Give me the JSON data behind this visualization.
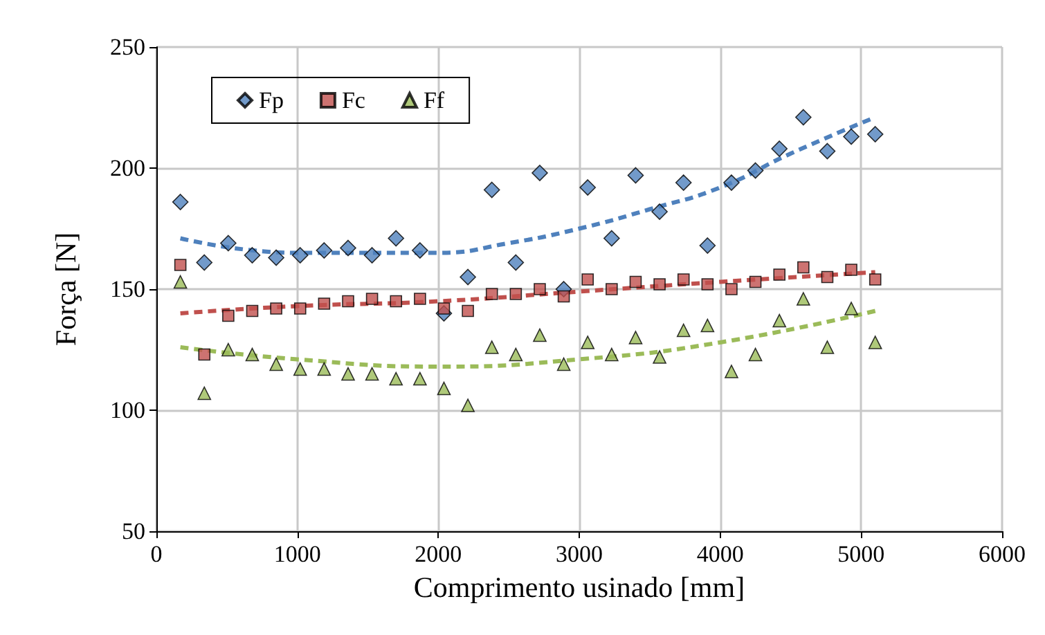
{
  "chart_data": {
    "type": "scatter",
    "xlabel": "Comprimento usinado [mm]",
    "ylabel": "Força [N]",
    "x": [
      170,
      340,
      510,
      680,
      850,
      1020,
      1190,
      1360,
      1530,
      1700,
      1870,
      2040,
      2210,
      2380,
      2550,
      2720,
      2890,
      3060,
      3230,
      3400,
      3570,
      3740,
      3910,
      4080,
      4250,
      4420,
      4590,
      4760,
      4930,
      5100
    ],
    "xlim": [
      0,
      6000
    ],
    "xticks": [
      0,
      1000,
      2000,
      3000,
      4000,
      5000,
      6000
    ],
    "ylim": [
      50,
      250
    ],
    "yticks": [
      50,
      100,
      150,
      200,
      250
    ],
    "grid": true,
    "legend": "top left",
    "series": [
      {
        "name": "Fp",
        "color": "#4f81bd",
        "marker": "diamond",
        "values": [
          186,
          161,
          169,
          164,
          163,
          164,
          166,
          167,
          164,
          171,
          166,
          140,
          155,
          191,
          161,
          198,
          150,
          192,
          171,
          197,
          182,
          194,
          168,
          194,
          199,
          208,
          221,
          207,
          213,
          214
        ]
      },
      {
        "name": "Fc",
        "color": "#c0504d",
        "marker": "square",
        "values": [
          160,
          123,
          139,
          141,
          142,
          142,
          144,
          145,
          146,
          145,
          146,
          142,
          141,
          148,
          148,
          150,
          147,
          154,
          150,
          153,
          152,
          154,
          152,
          150,
          153,
          156,
          159,
          155,
          158,
          154
        ]
      },
      {
        "name": "Ff",
        "color": "#9bbb59",
        "marker": "triangle",
        "values": [
          153,
          107,
          125,
          123,
          119,
          117,
          117,
          115,
          115,
          113,
          113,
          109,
          102,
          126,
          123,
          131,
          119,
          128,
          123,
          130,
          122,
          133,
          135,
          116,
          123,
          137,
          146,
          126,
          142,
          128
        ]
      },
      {
        "type": "line",
        "color": "#4f81bd",
        "marker": "none",
        "line_style": "dashed",
        "x": [
          170,
          1000,
          2000,
          2500,
          3000,
          3500,
          4000,
          4500,
          5100
        ],
        "values": [
          171,
          165,
          165,
          169,
          175,
          183,
          192,
          206,
          221
        ]
      },
      {
        "type": "line",
        "color": "#c0504d",
        "marker": "none",
        "line_style": "dashed",
        "x": [
          170,
          1000,
          2000,
          3000,
          4000,
          5100
        ],
        "values": [
          140,
          143,
          145,
          149,
          153,
          157
        ]
      },
      {
        "type": "line",
        "color": "#9bbb59",
        "marker": "none",
        "line_style": "dashed",
        "x": [
          170,
          1000,
          2000,
          3000,
          4000,
          5100
        ],
        "values": [
          126,
          121,
          118,
          121,
          128,
          141
        ]
      }
    ]
  }
}
